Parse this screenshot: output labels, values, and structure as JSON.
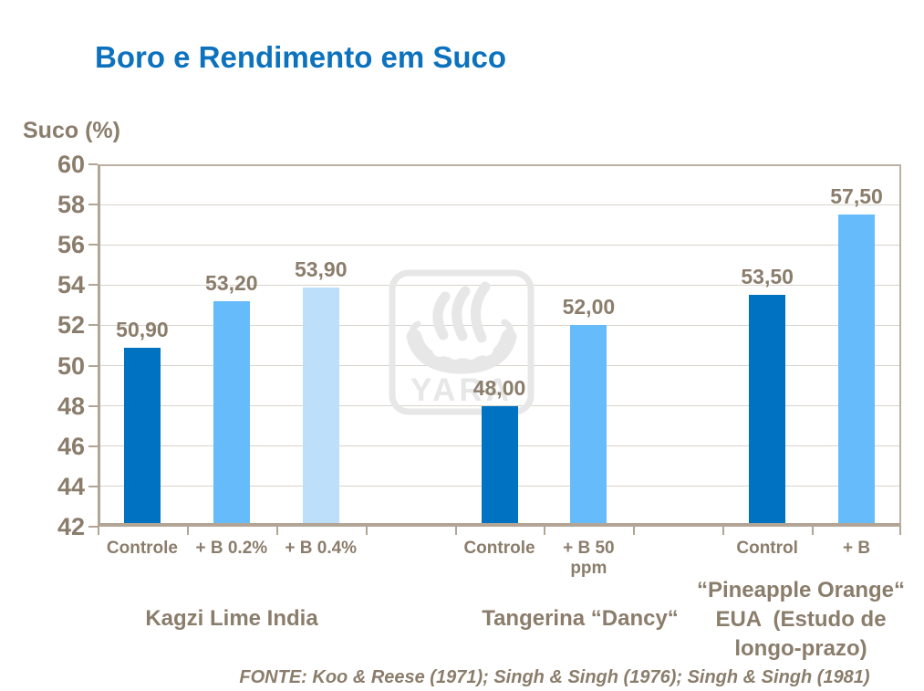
{
  "title": "Boro e Rendimento em Suco",
  "footer": "FONTE: Koo & Reese (1971); Singh & Singh (1976); Singh & Singh (1981)",
  "watermark": {
    "text": "YARA"
  },
  "colors": {
    "title_blue": "#0d72be",
    "text_taupe": "#8b7d6b",
    "axis_line": "#b2a596",
    "gridline": "#d9d3cb",
    "bar_dark": "#0072c2",
    "bar_medium": "#66bbfb",
    "bar_light": "#bedffa",
    "watermark_gray": "#e7e7e7"
  },
  "chart_data": {
    "type": "bar",
    "title": "Boro e Rendimento em Suco",
    "xlabel": "",
    "ylabel": "Suco (%)",
    "ylim": [
      42,
      60
    ],
    "ytick_step": 2,
    "yticks": [
      42,
      44,
      46,
      48,
      50,
      52,
      54,
      56,
      58,
      60
    ],
    "grid": true,
    "legend": "none",
    "groups": [
      {
        "label": "Kagzi Lime India",
        "bars": [
          {
            "category": "Controle",
            "value": 50.9,
            "value_label": "50,90",
            "color_key": "bar_dark"
          },
          {
            "category": "+ B 0.2%",
            "value": 53.2,
            "value_label": "53,20",
            "color_key": "bar_medium"
          },
          {
            "category": "+ B 0.4%",
            "value": 53.9,
            "value_label": "53,90",
            "color_key": "bar_light"
          }
        ]
      },
      {
        "label": "Tangerina “Dancy“",
        "bars": [
          {
            "category": "Controle",
            "value": 48.0,
            "value_label": "48,00",
            "color_key": "bar_dark"
          },
          {
            "category": "+ B 50\nppm",
            "value": 52.0,
            "value_label": "52,00",
            "color_key": "bar_medium"
          }
        ]
      },
      {
        "label": "“Pineapple Orange“\nEUA  (Estudo de\nlongo-prazo)",
        "bars": [
          {
            "category": "Control",
            "value": 53.5,
            "value_label": "53,50",
            "color_key": "bar_dark"
          },
          {
            "category": "+ B",
            "value": 57.5,
            "value_label": "57,50",
            "color_key": "bar_medium"
          }
        ]
      }
    ]
  }
}
